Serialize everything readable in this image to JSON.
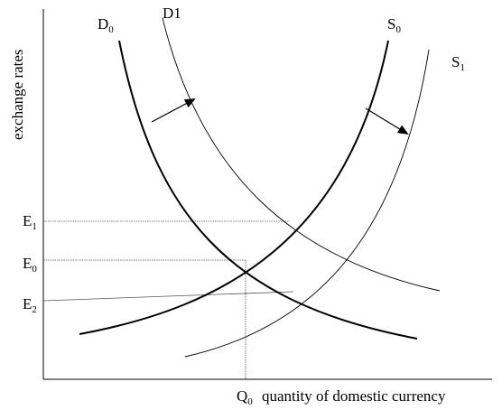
{
  "curves": {
    "d0": {
      "main": "D",
      "sub": "0"
    },
    "d1": {
      "main": "D1"
    },
    "s0": {
      "main": "S",
      "sub": "0"
    },
    "s1": {
      "main": "S",
      "sub": "1"
    }
  },
  "axes": {
    "y_label": "exchange rates",
    "x_label": "quantity of domestic currency"
  },
  "levels": {
    "e1": {
      "main": "E",
      "sub": "1"
    },
    "e0": {
      "main": "E",
      "sub": "0"
    },
    "e2": {
      "main": "E",
      "sub": "2"
    },
    "q0": {
      "main": "Q",
      "sub": "0"
    }
  }
}
